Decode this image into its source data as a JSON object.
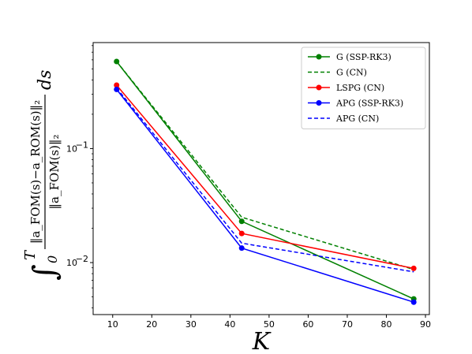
{
  "chart_data": {
    "type": "line",
    "title": "",
    "xlabel": "K",
    "ylabel": "∫₀ᵀ ‖a_FOM(s) − a_ROM(s)‖₂ / ‖a_FOM(s)‖₂ ds",
    "ylabel_parts": {
      "integral": "∫",
      "lower": "0",
      "upper": "T",
      "numerator": "‖a_FOM(s)−a_ROM(s)‖₂",
      "denominator": "‖a_FOM(s)‖₂",
      "ds": "ds"
    },
    "xlim": [
      5,
      91
    ],
    "ylim": [
      0.0035,
      0.85
    ],
    "yscale": "log",
    "x_ticks": [
      10,
      20,
      30,
      40,
      50,
      60,
      70,
      80,
      90
    ],
    "y_ticks": [
      {
        "value": 0.1,
        "base": "10",
        "exp": "−1"
      },
      {
        "value": 0.01,
        "base": "10",
        "exp": "−2"
      }
    ],
    "grid": false,
    "legend_position": "top-right",
    "series": [
      {
        "name": "G (SSP-RK3)",
        "color": "#008000",
        "dash": "solid",
        "marker": true,
        "x": [
          11,
          43,
          87
        ],
        "y": [
          0.58,
          0.023,
          0.0048
        ]
      },
      {
        "name": "G (CN)",
        "color": "#008000",
        "dash": "dashed",
        "marker": false,
        "x": [
          11,
          43,
          87
        ],
        "y": [
          0.58,
          0.025,
          0.0087
        ]
      },
      {
        "name": "LSPG (CN)",
        "color": "#ff0000",
        "dash": "solid",
        "marker": true,
        "x": [
          11,
          43,
          87
        ],
        "y": [
          0.36,
          0.018,
          0.0089
        ]
      },
      {
        "name": "APG (SSP-RK3)",
        "color": "#0000ff",
        "dash": "solid",
        "marker": true,
        "x": [
          11,
          43,
          87
        ],
        "y": [
          0.33,
          0.0134,
          0.0045
        ]
      },
      {
        "name": "APG (CN)",
        "color": "#0000ff",
        "dash": "dashed",
        "marker": false,
        "x": [
          11,
          43,
          87
        ],
        "y": [
          0.34,
          0.0148,
          0.0083
        ]
      }
    ]
  }
}
